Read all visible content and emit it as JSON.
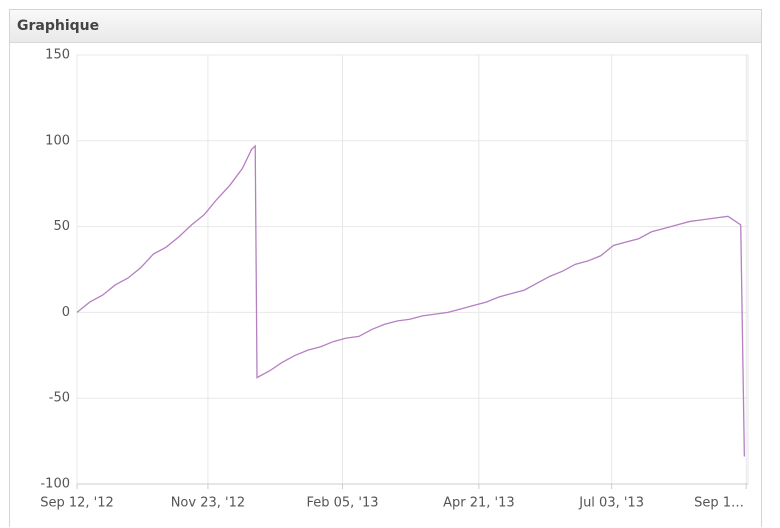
{
  "chart_data": {
    "type": "line",
    "title": "Graphique",
    "x": [
      "2012-09-12",
      "2012-09-19",
      "2012-09-26",
      "2012-10-03",
      "2012-10-10",
      "2012-10-17",
      "2012-10-24",
      "2012-10-31",
      "2012-11-07",
      "2012-11-14",
      "2012-11-21",
      "2012-11-28",
      "2012-12-05",
      "2012-12-12",
      "2012-12-17",
      "2012-12-19",
      "2012-12-20",
      "2012-12-27",
      "2013-01-03",
      "2013-01-10",
      "2013-01-17",
      "2013-01-24",
      "2013-01-31",
      "2013-02-07",
      "2013-02-14",
      "2013-02-21",
      "2013-02-28",
      "2013-03-07",
      "2013-03-14",
      "2013-03-21",
      "2013-03-28",
      "2013-04-04",
      "2013-04-11",
      "2013-04-18",
      "2013-04-25",
      "2013-05-02",
      "2013-05-09",
      "2013-05-16",
      "2013-05-23",
      "2013-05-30",
      "2013-06-06",
      "2013-06-13",
      "2013-06-20",
      "2013-06-27",
      "2013-07-04",
      "2013-07-11",
      "2013-07-18",
      "2013-07-25",
      "2013-08-01",
      "2013-08-08",
      "2013-08-15",
      "2013-08-22",
      "2013-08-29",
      "2013-09-05",
      "2013-09-12",
      "2013-09-14"
    ],
    "values": [
      0,
      6,
      10,
      16,
      20,
      26,
      34,
      38,
      44,
      51,
      57,
      66,
      74,
      84,
      95,
      97,
      -38,
      -34,
      -29,
      -25,
      -22,
      -20,
      -17,
      -15,
      -14,
      -10,
      -7,
      -5,
      -4,
      -2,
      -1,
      0,
      2,
      4,
      6,
      9,
      11,
      13,
      17,
      21,
      24,
      28,
      30,
      33,
      39,
      41,
      43,
      47,
      49,
      51,
      53,
      54,
      55,
      56,
      51,
      -84
    ],
    "color": "#b57fc2",
    "xlim": [
      "2012-09-12",
      "2013-09-16"
    ],
    "xticks": [
      {
        "value": "2012-09-12",
        "label": "Sep 12, '12"
      },
      {
        "value": "2012-11-23",
        "label": "Nov 23, '12"
      },
      {
        "value": "2013-02-05",
        "label": "Feb 05, '13"
      },
      {
        "value": "2013-04-21",
        "label": "Apr 21, '13"
      },
      {
        "value": "2013-07-03",
        "label": "Jul 03, '13"
      },
      {
        "value": "2013-09-15",
        "label": "Sep 1…"
      }
    ],
    "ylim": [
      -100,
      150
    ],
    "yticks": [
      150,
      100,
      50,
      0,
      -50,
      -100
    ],
    "grid": true
  }
}
